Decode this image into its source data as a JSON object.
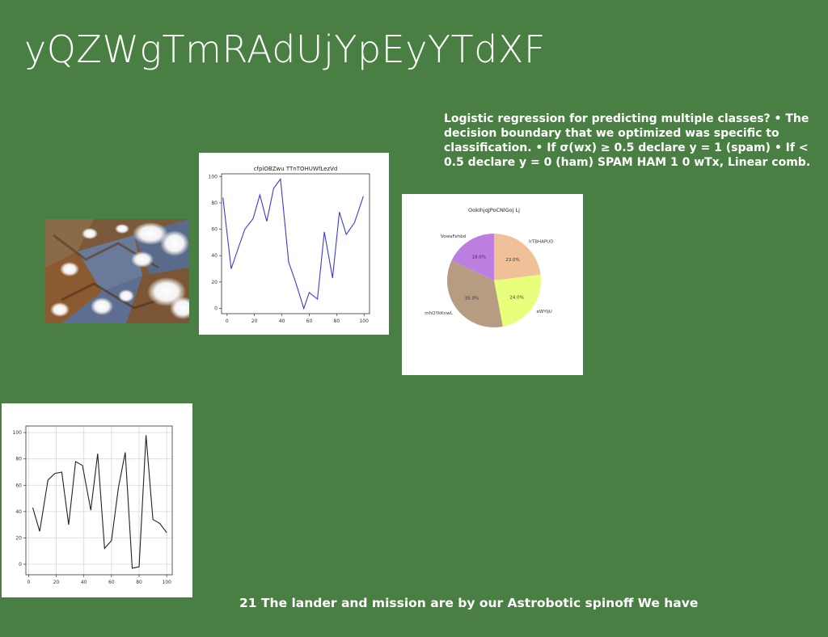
{
  "slide": {
    "title": "yQZWgTmRAdUjYpEyYTdXF",
    "body_text": "Logistic regression for predicting multiple classes? • The decision boundary that we optimized was specific to classification. • If σ(w⁣x) ≥ 0.5 declare y = 1 (spam) • If < 0.5 declare y = 0 (ham) SPAM HAM 1 0 wTx, Linear comb.",
    "caption": "21 The lander and mission are by our Astrobotic spinoff We have"
  },
  "chart_data": [
    {
      "type": "line",
      "title": "cfpiOBZwu TTnTOHUWfLezVd",
      "xlabel": "",
      "ylabel": "",
      "xlim": [
        -4,
        104
      ],
      "ylim": [
        -4,
        102
      ],
      "xticks": [
        0,
        20,
        40,
        60,
        80,
        100
      ],
      "yticks": [
        0,
        20,
        40,
        60,
        80,
        100
      ],
      "grid": false,
      "color": "#3b3bd1",
      "x": [
        -3,
        3,
        8,
        13,
        20,
        24,
        30,
        35,
        40,
        45,
        50,
        55,
        60,
        65,
        70,
        75,
        80,
        85,
        90,
        95,
        100
      ],
      "y": [
        84,
        30,
        45,
        59,
        67,
        86,
        67,
        91,
        98,
        35,
        19,
        0,
        13,
        8,
        57,
        23,
        72,
        56,
        65,
        84,
        84
      ],
      "series_x": [
        -3,
        3,
        8,
        13,
        19,
        24,
        29,
        34,
        39,
        45,
        50,
        56,
        60,
        66,
        71,
        77,
        82,
        87,
        93,
        99.5
      ],
      "series_y": [
        84,
        30,
        45,
        60,
        68,
        86,
        66,
        91,
        98,
        35,
        20,
        0,
        12,
        7,
        58,
        23,
        73,
        56,
        65,
        85
      ]
    },
    {
      "type": "pie",
      "title": "OokIhjqJPoCNlGoj Lj",
      "labels": [
        "IrTBHAPUD",
        "eWYljU",
        "mhQYkKnwL",
        "VowaFehbd"
      ],
      "values": [
        23.0,
        24.0,
        35.0,
        18.0
      ],
      "value_labels": [
        "23.0%",
        "24.0%",
        "35.0%",
        "18.0%"
      ],
      "colors": [
        "#f0c198",
        "#e7ff7a",
        "#b69c80",
        "#bc7fe0"
      ]
    },
    {
      "type": "line",
      "title": "",
      "xlabel": "",
      "ylabel": "",
      "xlim": [
        -2,
        104
      ],
      "ylim": [
        -8,
        105
      ],
      "xticks": [
        0,
        20,
        40,
        60,
        80,
        100
      ],
      "yticks": [
        0,
        20,
        40,
        60,
        80,
        100
      ],
      "grid": true,
      "color": "#222222",
      "x": [
        3,
        8,
        14,
        19,
        24,
        29,
        34,
        39,
        45,
        50,
        55,
        60,
        65,
        70,
        75,
        80,
        85,
        90,
        95,
        100
      ],
      "y": [
        43,
        25,
        64,
        69,
        70,
        30,
        78,
        75,
        41,
        84,
        12,
        18,
        58,
        85,
        -3,
        -2,
        98,
        34,
        31,
        24
      ]
    }
  ]
}
